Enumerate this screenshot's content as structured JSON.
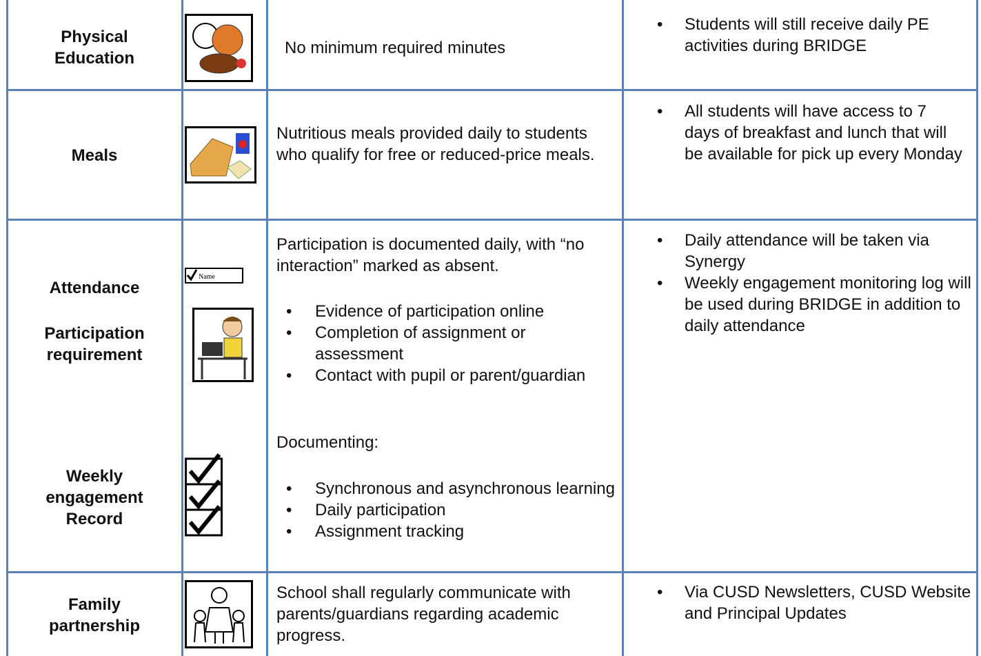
{
  "table": {
    "rows": [
      {
        "labels": [
          "Physical Education"
        ],
        "description": "No minimum required minutes",
        "notes": [
          "Students will still receive daily PE activities during BRIDGE"
        ]
      },
      {
        "labels": [
          "Meals"
        ],
        "description": "Nutritious meals provided daily to students who qualify for free or reduced-price meals.",
        "notes": [
          "All students will have access to 7 days of breakfast and lunch that will be available for pick up every Monday"
        ]
      },
      {
        "labels": [
          "Attendance",
          "Participation requirement",
          "Weekly engagement Record"
        ],
        "icon_text": "Name",
        "description": "Participation is documented daily, with “no interaction” marked as absent.",
        "items": [
          "Evidence of participation online",
          "Completion of assignment or assessment",
          "Contact with pupil or parent/guardian"
        ],
        "subheading": "Documenting:",
        "items2": [
          "Synchronous and asynchronous learning",
          "Daily participation",
          "Assignment tracking"
        ],
        "notes": [
          "Daily attendance will be taken via Synergy",
          "Weekly engagement monitoring log will be used during BRIDGE in addition to daily attendance"
        ]
      },
      {
        "labels": [
          "Family partnership"
        ],
        "description": "School shall regularly communicate with parents/guardians regarding academic progress.",
        "notes": [
          "Via CUSD Newsletters, CUSD Website and Principal Updates"
        ]
      }
    ]
  }
}
